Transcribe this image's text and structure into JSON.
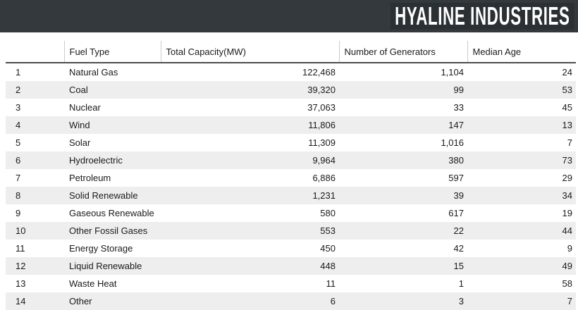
{
  "topbar": {
    "brand": "HYALINE INDUSTRIES",
    "bar_color": "#34393d",
    "logo_bg_color": "#2b3034",
    "brand_text_color": "#ffffff"
  },
  "table": {
    "columns": [
      {
        "label": ""
      },
      {
        "label": "Fuel Type"
      },
      {
        "label": "Total Capacity(MW)"
      },
      {
        "label": "Number of Generators"
      },
      {
        "label": "Median Age"
      }
    ],
    "rows": [
      [
        "1",
        "Natural Gas",
        "122,468",
        "1,104",
        "24"
      ],
      [
        "2",
        "Coal",
        "39,320",
        "99",
        "53"
      ],
      [
        "3",
        "Nuclear",
        "37,063",
        "33",
        "45"
      ],
      [
        "4",
        "Wind",
        "11,806",
        "147",
        "13"
      ],
      [
        "5",
        "Solar",
        "11,309",
        "1,016",
        "7"
      ],
      [
        "6",
        "Hydroelectric",
        "9,964",
        "380",
        "73"
      ],
      [
        "7",
        "Petroleum",
        "6,886",
        "597",
        "29"
      ],
      [
        "8",
        "Solid Renewable",
        "1,231",
        "39",
        "34"
      ],
      [
        "9",
        "Gaseous Renewable",
        "580",
        "617",
        "19"
      ],
      [
        "10",
        "Other Fossil Gases",
        "553",
        "22",
        "44"
      ],
      [
        "11",
        "Energy Storage",
        "450",
        "42",
        "9"
      ],
      [
        "12",
        "Liquid Renewable",
        "448",
        "15",
        "49"
      ],
      [
        "13",
        "Waste Heat",
        "11",
        "1",
        "58"
      ],
      [
        "14",
        "Other",
        "6",
        "3",
        "7"
      ]
    ],
    "stripe_color": "#eeeeee",
    "header_border_color": "#4d4d4d",
    "header_separator_color": "#cccccc"
  }
}
